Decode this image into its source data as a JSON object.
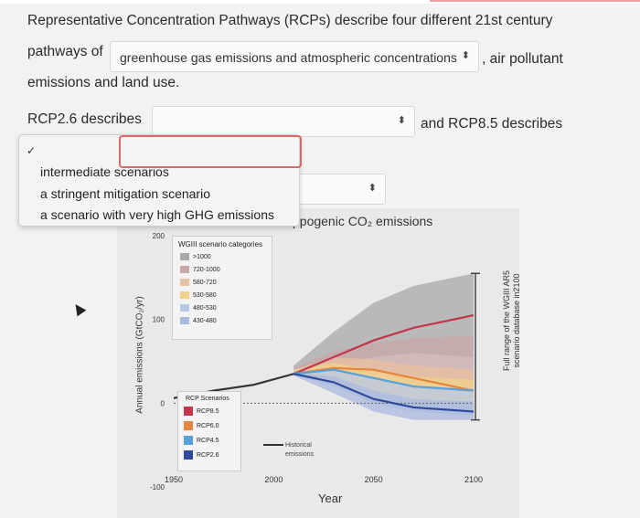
{
  "question": {
    "line1": "Representative Concentration Pathways (RCPs) describe four different 21st century",
    "line2_prefix": "pathways of",
    "line2_suffix": ", air pollutant",
    "line3": "emissions and land use.",
    "rcp26_label": "RCP2.6 describes",
    "rcp85_label": "and RCP8.5 describes"
  },
  "select1": {
    "value": "greenhouse gas emissions and atmospheric concentrations",
    "arrows": "⬍"
  },
  "select2": {
    "value": "",
    "arrows": "⬍"
  },
  "select3": {
    "value": "",
    "arrows": "⬍"
  },
  "dropdown": {
    "check": "✓",
    "options": [
      "intermediate scenarios",
      "a stringent mitigation scenario",
      "a scenario with very high GHG emissions"
    ]
  },
  "figure": {
    "title_fragment": "ppogenic CO₂ emissions",
    "ylabel": "Annual emissions (GtCO₂/yr)",
    "xlabel": "Year",
    "right_label_1": "Full range of the WGIII AR5",
    "right_label_2": "scenario database in2100",
    "legend1_title": "WGIII scenario categories",
    "legend1_items": [
      ">1000",
      "720-1000",
      "580-720",
      "530-580",
      "480-530",
      "430-480"
    ],
    "legend2_title": "RCP Scenarios",
    "legend2_items": [
      "RCP8.5",
      "RCP6.0",
      "RCP4.5",
      "RCP2.6"
    ],
    "historical_label_1": "Historical",
    "historical_label_2": "emissions",
    "colors": {
      "rcp85": "#c2354a",
      "rcp60": "#e6853a",
      "rcp45": "#5aa0d8",
      "rcp26": "#2f4a9a",
      "historical": "#333333",
      "cat1": "#a8a8a8",
      "cat2": "#c9a8a8",
      "cat3": "#e8bfa0",
      "cat4": "#f0d08a",
      "cat5": "#b7c9e6",
      "cat6": "#a9b8de"
    }
  },
  "chart_data": {
    "type": "line",
    "title": "",
    "xlabel": "Year",
    "ylabel": "Annual emissions (GtCO₂/yr)",
    "xlim": [
      1950,
      2100
    ],
    "ylim": [
      -100,
      200
    ],
    "xticks": [
      1950,
      2000,
      2050,
      2100
    ],
    "yticks": [
      -100,
      0,
      100,
      200
    ],
    "series": [
      {
        "name": "Historical emissions",
        "x": [
          1950,
          1970,
          1990,
          2010
        ],
        "y": [
          6,
          15,
          22,
          35
        ]
      },
      {
        "name": "RCP8.5",
        "x": [
          2010,
          2030,
          2050,
          2070,
          2100
        ],
        "y": [
          35,
          55,
          75,
          90,
          105
        ]
      },
      {
        "name": "RCP6.0",
        "x": [
          2010,
          2030,
          2050,
          2070,
          2100
        ],
        "y": [
          35,
          42,
          40,
          30,
          15
        ]
      },
      {
        "name": "RCP4.5",
        "x": [
          2010,
          2030,
          2050,
          2070,
          2100
        ],
        "y": [
          35,
          40,
          30,
          20,
          15
        ]
      },
      {
        "name": "RCP2.6",
        "x": [
          2010,
          2030,
          2050,
          2070,
          2100
        ],
        "y": [
          35,
          25,
          5,
          -5,
          -10
        ]
      }
    ]
  }
}
